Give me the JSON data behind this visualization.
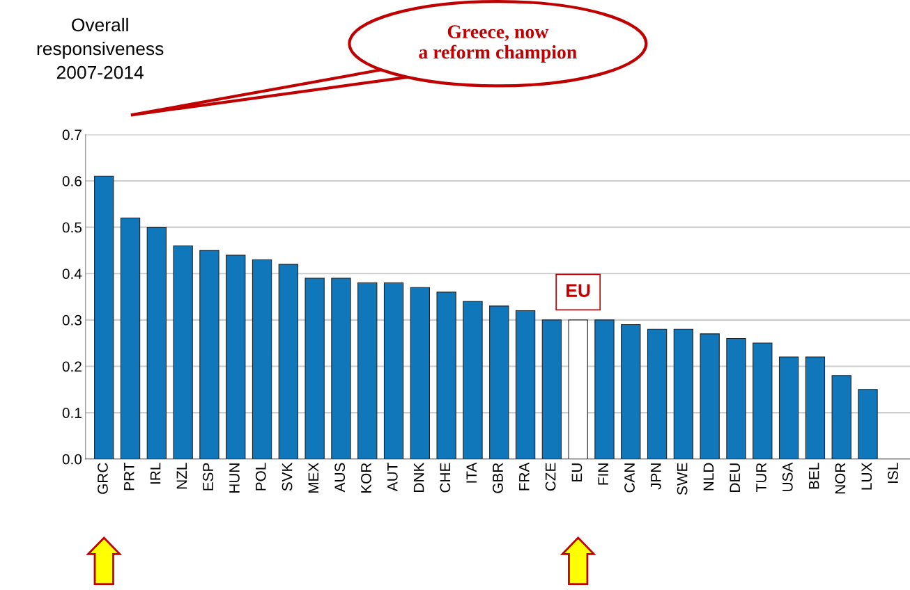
{
  "chart_data": {
    "type": "bar",
    "ylabel": "Overall\nresponsiveness\n2007-2014",
    "categories": [
      "GRC",
      "PRT",
      "IRL",
      "NZL",
      "ESP",
      "HUN",
      "POL",
      "SVK",
      "MEX",
      "AUS",
      "KOR",
      "AUT",
      "DNK",
      "CHE",
      "ITA",
      "GBR",
      "FRA",
      "CZE",
      "EU",
      "FIN",
      "CAN",
      "JPN",
      "SWE",
      "NLD",
      "DEU",
      "TUR",
      "USA",
      "BEL",
      "NOR",
      "LUX",
      "ISL"
    ],
    "values": [
      0.61,
      0.52,
      0.5,
      0.46,
      0.45,
      0.44,
      0.43,
      0.42,
      0.39,
      0.39,
      0.38,
      0.38,
      0.37,
      0.36,
      0.34,
      0.33,
      0.32,
      0.3,
      0.3,
      0.3,
      0.29,
      0.28,
      0.28,
      0.27,
      0.26,
      0.25,
      0.22,
      0.22,
      0.18,
      0.15,
      null
    ],
    "colors": [
      "#1177bb",
      "#1177bb",
      "#1177bb",
      "#1177bb",
      "#1177bb",
      "#1177bb",
      "#1177bb",
      "#1177bb",
      "#1177bb",
      "#1177bb",
      "#1177bb",
      "#1177bb",
      "#1177bb",
      "#1177bb",
      "#1177bb",
      "#1177bb",
      "#1177bb",
      "#1177bb",
      "#ffffff",
      "#1177bb",
      "#1177bb",
      "#1177bb",
      "#1177bb",
      "#1177bb",
      "#1177bb",
      "#1177bb",
      "#1177bb",
      "#1177bb",
      "#1177bb",
      "#1177bb",
      "#1177bb"
    ],
    "ylim": [
      0,
      0.7
    ],
    "yticks": [
      {
        "value": 0,
        "label": "0.0"
      },
      0.1,
      0.2,
      0.3,
      0.4,
      0.5,
      0.6,
      0.7
    ],
    "grid": "y",
    "annotations": [
      "Greece, now\na reform champion",
      {
        "text": "EU",
        "x": "EU",
        "y": 0.3
      }
    ]
  }
}
